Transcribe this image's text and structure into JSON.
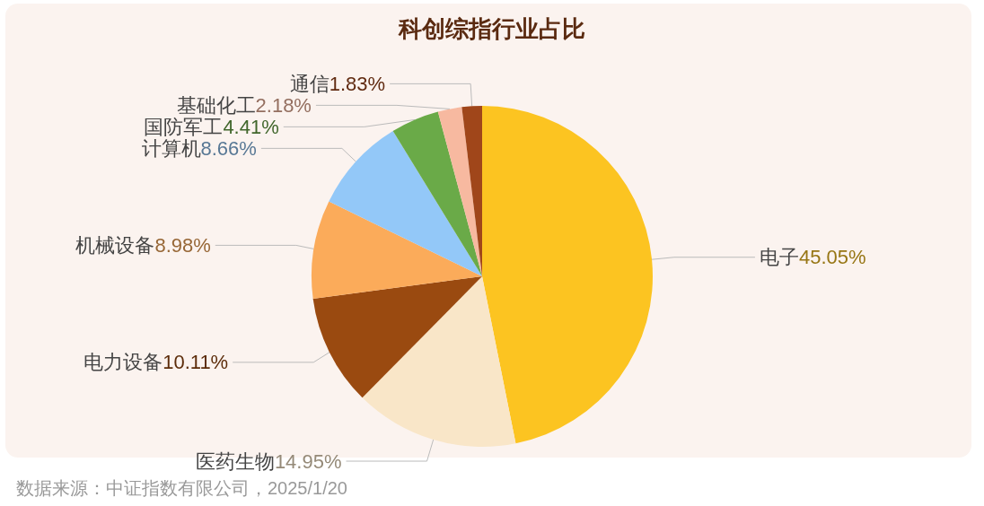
{
  "chart_data": {
    "type": "pie",
    "title": "科创综指行业占比",
    "categories": [
      "电子",
      "医药生物",
      "电力设备",
      "机械设备",
      "计算机",
      "国防军工",
      "基础化工",
      "通信"
    ],
    "values": [
      45.05,
      14.95,
      10.11,
      8.98,
      8.66,
      4.41,
      2.18,
      1.83
    ],
    "value_labels": [
      "45.05%",
      "14.95%",
      "10.11%",
      "8.98%",
      "8.66%",
      "4.41%",
      "2.18%",
      "1.83%"
    ],
    "colors": [
      "#fcc421",
      "#f9e6c8",
      "#9a4a10",
      "#fbab5a",
      "#93c8f8",
      "#6aaa48",
      "#f7b9a0",
      "#a0461a"
    ],
    "legend": false,
    "annotations": [
      "数据来源：中证指数有限公司，2025/1/20"
    ]
  }
}
